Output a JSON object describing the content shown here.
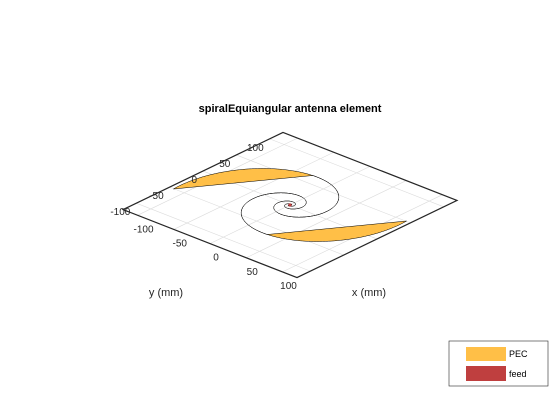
{
  "chart_data": {
    "type": "3d-surface",
    "title": "spiralEquiangular antenna element",
    "xlabel": "x (mm)",
    "ylabel": "y (mm)",
    "xlim": [
      -120,
      120
    ],
    "ylim": [
      -120,
      120
    ],
    "x_ticks": [
      "-100",
      "-50",
      "0",
      "50",
      "100"
    ],
    "y_ticks": [
      "-100",
      "-50",
      "0",
      "50",
      "100"
    ],
    "x_tick_values": [
      -100,
      -50,
      0,
      50,
      100
    ],
    "y_tick_values": [
      -100,
      -50,
      0,
      50,
      100
    ],
    "grid": true,
    "legend_position": "bottom-right",
    "spiral": {
      "growth_rate": 0.35,
      "inner_radius_mm": 0.5,
      "outer_radius_mm": 125,
      "arm_width_angle_deg": 90
    },
    "series": [
      {
        "name": "PEC",
        "color": "#FFBF47"
      },
      {
        "name": "feed",
        "color": "#BF3F3F"
      }
    ]
  }
}
